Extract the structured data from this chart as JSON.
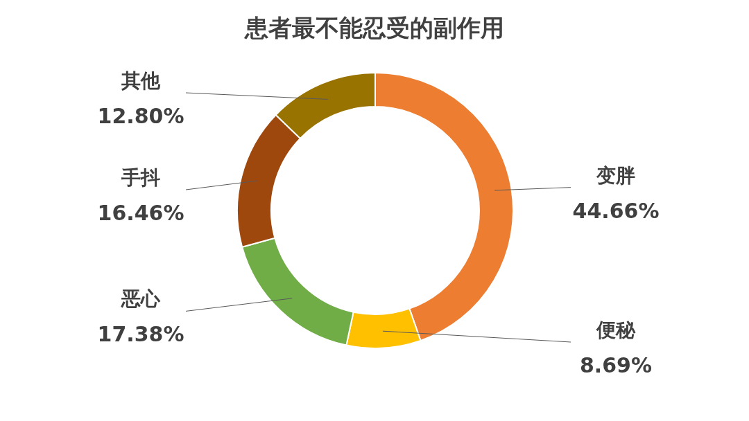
{
  "chart_data": {
    "type": "donut",
    "title": "患者最不能忍受的副作用",
    "categories": [
      "变胖",
      "便秘",
      "恶心",
      "手抖",
      "其他"
    ],
    "values": [
      44.66,
      8.69,
      17.38,
      16.46,
      12.8
    ],
    "colors": [
      "#ed7d31",
      "#ffc000",
      "#70ad47",
      "#9e480e",
      "#997300"
    ],
    "value_labels": [
      "44.66%",
      "8.69%",
      "17.38%",
      "16.46%",
      "12.80%"
    ]
  }
}
